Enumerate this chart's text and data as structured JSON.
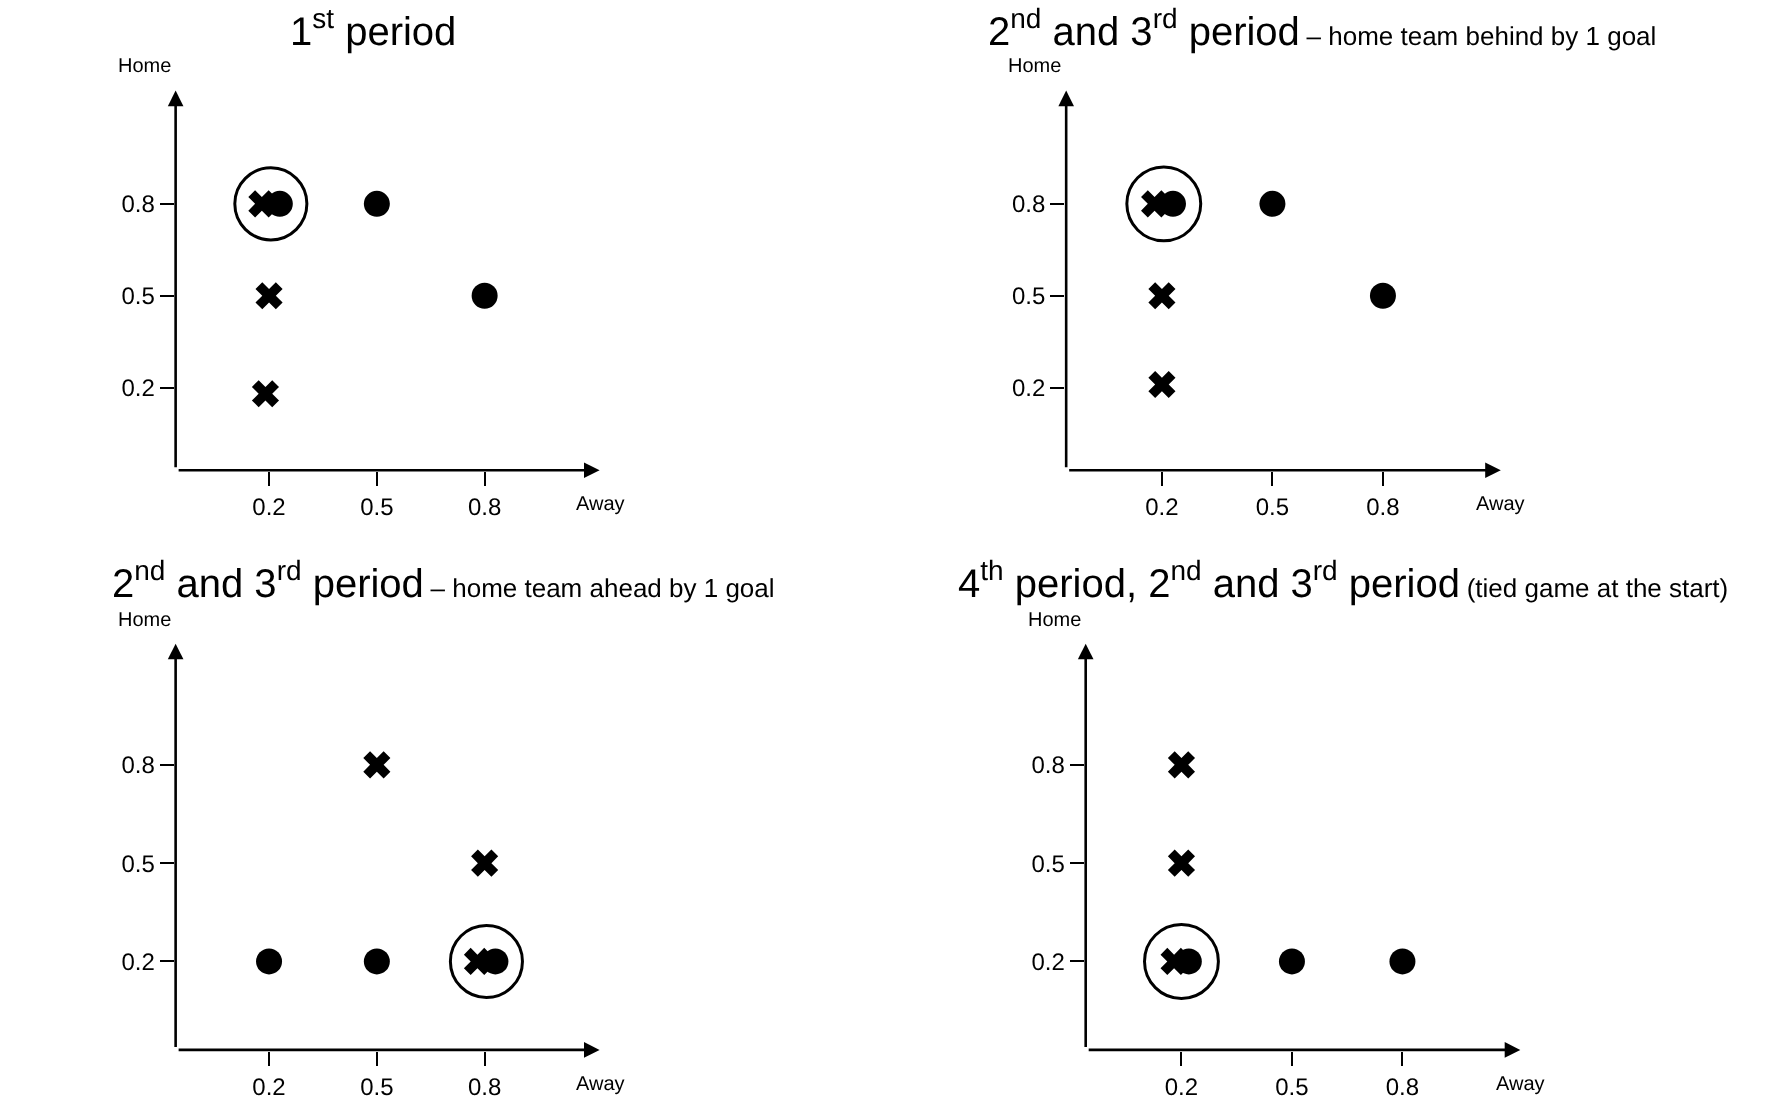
{
  "chart_data": [
    {
      "type": "scatter",
      "title": "1$^{st}$ period",
      "xlabel": "Away",
      "ylabel": "Home",
      "xlim": [
        -0.06,
        1.12
      ],
      "ylim": [
        -0.07,
        1.17
      ],
      "xticks": [
        0.2,
        0.5,
        0.8
      ],
      "yticks": [
        0.2,
        0.5,
        0.8
      ],
      "series": [
        {
          "color": "#000000",
          "marker": "cross",
          "x": [
            0.18,
            0.2,
            0.19
          ],
          "values": [
            0.8,
            0.5,
            0.18
          ]
        },
        {
          "color": "#000000",
          "marker": "circle",
          "x": [
            0.23,
            0.5,
            0.8
          ],
          "values": [
            0.8,
            0.8,
            0.5
          ]
        }
      ]
    },
    {
      "type": "scatter",
      "title": "2$^{nd}$ and 3$^{rd}$ period",
      "subtitle": "– home team behind by 1 goal",
      "xlabel": "Away",
      "ylabel": "Home",
      "xlim": [
        -0.06,
        1.12
      ],
      "ylim": [
        -0.07,
        1.17
      ],
      "xticks": [
        0.2,
        0.5,
        0.8
      ],
      "yticks": [
        0.2,
        0.5,
        0.8
      ],
      "series": [
        {
          "color": "#000000",
          "marker": "cross",
          "x": [
            0.18,
            0.2,
            0.2
          ],
          "values": [
            0.8,
            0.5,
            0.21
          ]
        },
        {
          "color": "#000000",
          "marker": "circle",
          "x": [
            0.23,
            0.5,
            0.8
          ],
          "values": [
            0.8,
            0.8,
            0.5
          ]
        }
      ]
    },
    {
      "type": "scatter",
      "title": "2$^{nd}$ and 3$^{rd}$ period",
      "subtitle": "– home team ahead by 1 goal",
      "xlabel": "Away",
      "ylabel": "Home",
      "xlim": [
        -0.06,
        1.12
      ],
      "ylim": [
        -0.07,
        1.17
      ],
      "xticks": [
        0.2,
        0.5,
        0.8
      ],
      "yticks": [
        0.2,
        0.5,
        0.8
      ],
      "series": [
        {
          "color": "#000000",
          "marker": "cross",
          "x": [
            0.5,
            0.8,
            0.78
          ],
          "values": [
            0.8,
            0.5,
            0.2
          ]
        },
        {
          "color": "#000000",
          "marker": "circle",
          "x": [
            0.2,
            0.5,
            0.83
          ],
          "values": [
            0.2,
            0.2,
            0.2
          ]
        }
      ]
    },
    {
      "type": "scatter",
      "title": "4$^{th}$ period, 2$^{nd}$ and 3$^{rd}$ period",
      "subtitle": "(tied game at the start)",
      "xlabel": "Away",
      "ylabel": "Home",
      "xlim": [
        -0.06,
        1.12
      ],
      "ylim": [
        -0.07,
        1.17
      ],
      "xticks": [
        0.2,
        0.5,
        0.8
      ],
      "yticks": [
        0.2,
        0.5,
        0.8
      ],
      "series": [
        {
          "color": "#000000",
          "marker": "cross",
          "x": [
            0.2,
            0.2,
            0.18
          ],
          "values": [
            0.8,
            0.5,
            0.2
          ]
        },
        {
          "color": "#000000",
          "marker": "circle",
          "x": [
            0.22,
            0.5,
            0.8
          ],
          "values": [
            0.2,
            0.2,
            0.2
          ]
        }
      ]
    }
  ]
}
